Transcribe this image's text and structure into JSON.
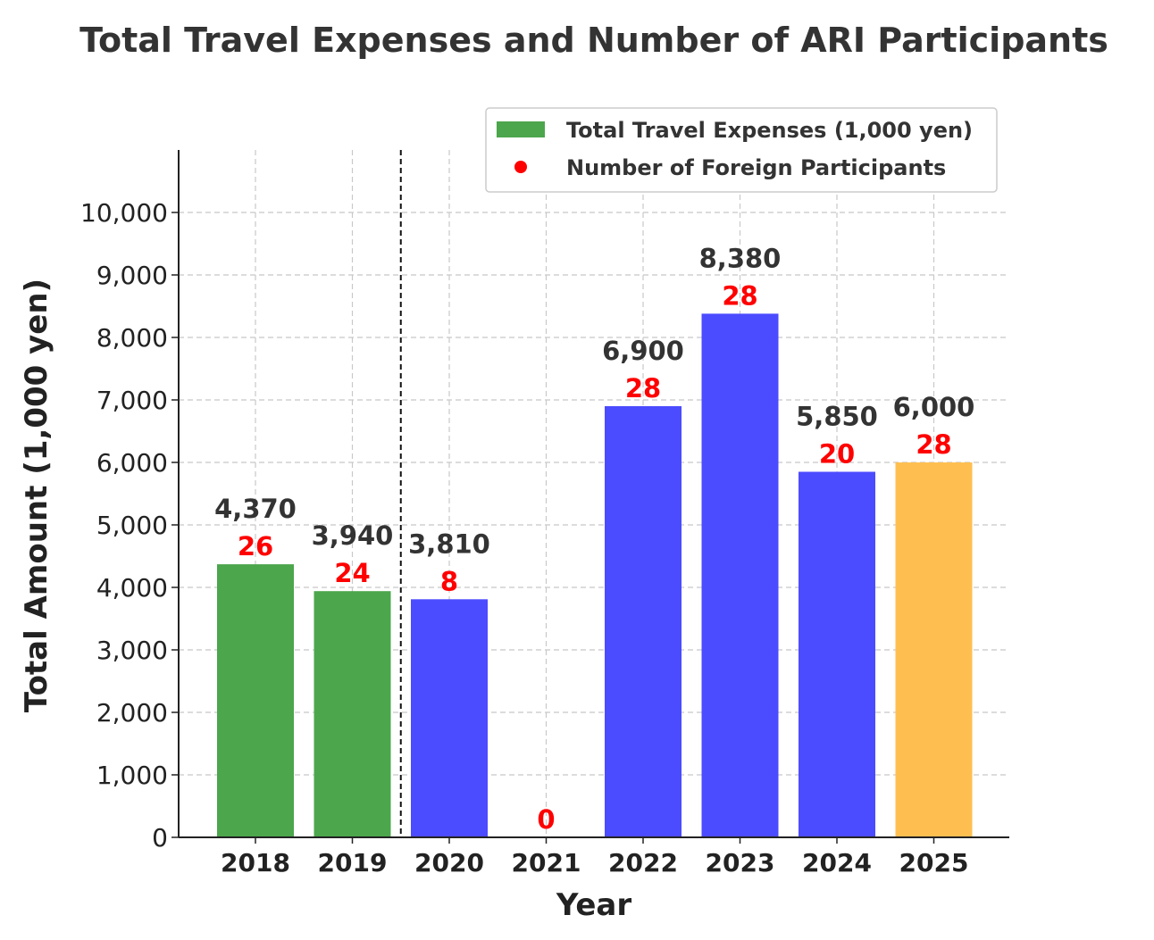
{
  "chart_data": {
    "type": "bar",
    "title": "Total Travel Expenses and Number of ARI Participants",
    "xlabel": "Year",
    "ylabel": "Total Amount (1,000 yen)",
    "ylim": [
      0,
      11000
    ],
    "yticks": [
      0,
      1000,
      2000,
      3000,
      4000,
      5000,
      6000,
      7000,
      8000,
      9000,
      10000
    ],
    "ytick_labels": [
      "0",
      "1,000",
      "2,000",
      "3,000",
      "4,000",
      "5,000",
      "6,000",
      "7,000",
      "8,000",
      "9,000",
      "10,000"
    ],
    "grid": true,
    "legend_position": "top-right",
    "divider_after": "2019",
    "categories": [
      "2018",
      "2019",
      "2020",
      "2021",
      "2022",
      "2023",
      "2024",
      "2025"
    ],
    "series": [
      {
        "name": "Total Travel Expenses (1,000 yen)",
        "legend_color": "#4ca64c",
        "values": [
          4370,
          3940,
          3810,
          0,
          6900,
          8380,
          5850,
          6000
        ],
        "value_labels": [
          "4,370",
          "3,940",
          "3,810",
          "",
          "6,900",
          "8,380",
          "5,850",
          "6,000"
        ],
        "colors": [
          "#4ca64c",
          "#4ca64c",
          "#4b4bff",
          "#4b4bff",
          "#4b4bff",
          "#4b4bff",
          "#4b4bff",
          "#ffbf50"
        ]
      },
      {
        "name": "Number of Foreign Participants",
        "color": "#ff0000",
        "values": [
          26,
          24,
          8,
          0,
          28,
          28,
          20,
          28
        ],
        "value_labels": [
          "26",
          "24",
          "8",
          "0",
          "28",
          "28",
          "20",
          "28"
        ]
      }
    ]
  }
}
